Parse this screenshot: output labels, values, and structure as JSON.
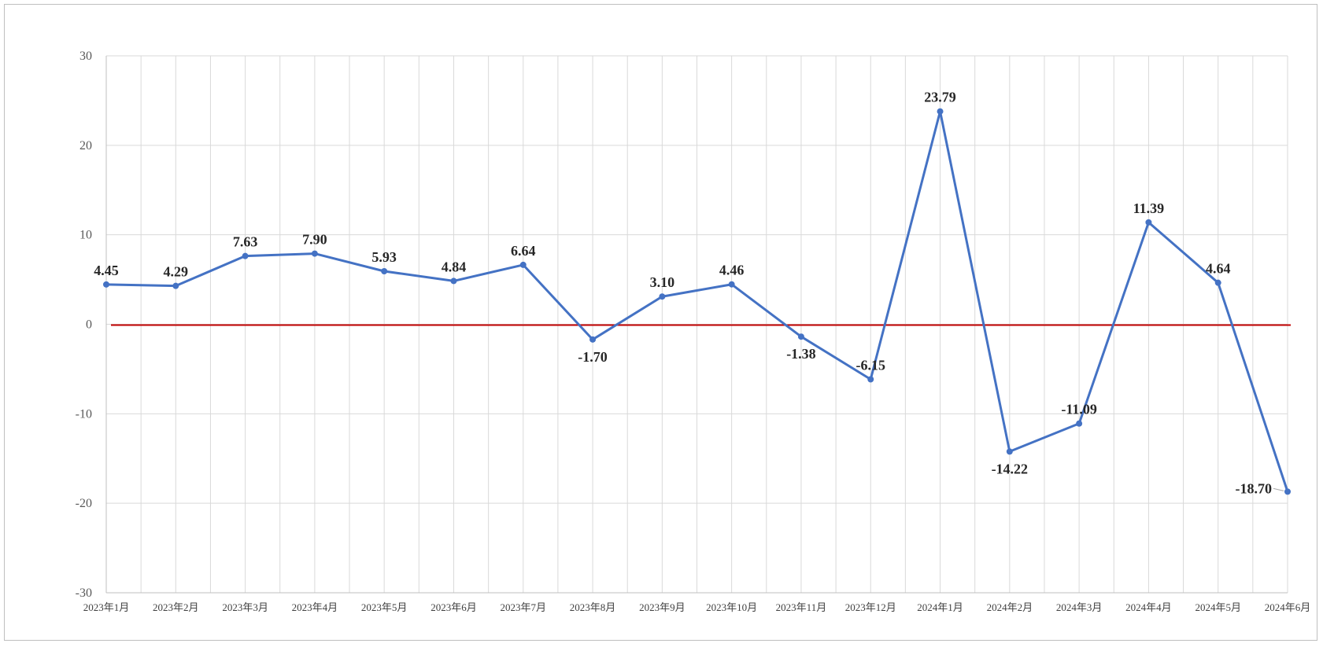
{
  "chart_data": {
    "type": "line",
    "categories": [
      "2023年1月",
      "2023年2月",
      "2023年3月",
      "2023年4月",
      "2023年5月",
      "2023年6月",
      "2023年7月",
      "2023年8月",
      "2023年9月",
      "2023年10月",
      "2023年11月",
      "2023年12月",
      "2024年1月",
      "2024年2月",
      "2024年3月",
      "2024年4月",
      "2024年5月",
      "2024年6月"
    ],
    "series": [
      {
        "values": [
          4.45,
          4.29,
          7.63,
          7.9,
          5.93,
          4.84,
          6.64,
          -1.7,
          3.1,
          4.46,
          -1.38,
          -6.15,
          23.79,
          -14.22,
          -11.09,
          11.39,
          4.64,
          -18.7
        ],
        "labels": [
          "4.45",
          "4.29",
          "7.63",
          "7.90",
          "5.93",
          "4.84",
          "6.64",
          "-1.70",
          "3.10",
          "4.46",
          "-1.38",
          "-6.15",
          "23.79",
          "-14.22",
          "-11.09",
          "11.39",
          "4.64",
          "-18.70"
        ]
      }
    ],
    "y_ticks": [
      "30",
      "20",
      "10",
      "0",
      "-10",
      "-20",
      "-30"
    ],
    "y_tick_values": [
      30,
      20,
      10,
      0,
      -10,
      -20,
      -30
    ],
    "ylim": [
      -30,
      30
    ],
    "reference_line": 0,
    "grid": true,
    "legend": "none",
    "colors": {
      "series": "#4472c4",
      "reference_line": "#c00000",
      "grid": "#d9d9d9"
    }
  }
}
